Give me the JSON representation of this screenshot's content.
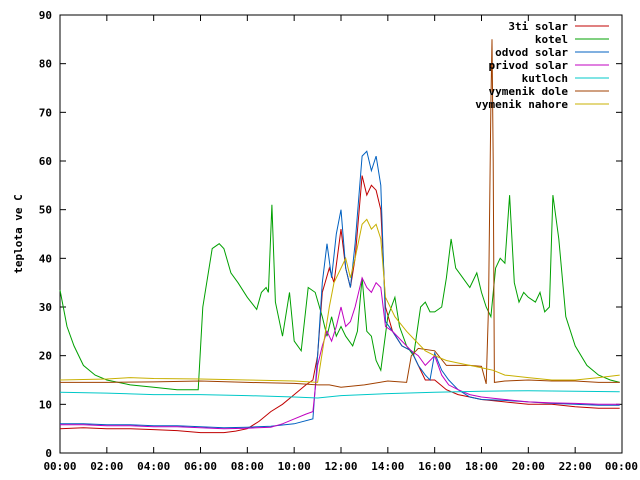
{
  "chart_data": {
    "type": "line",
    "title": "",
    "xlabel": "",
    "ylabel": "teplota ve C",
    "xlim": [
      0,
      24
    ],
    "ylim": [
      0,
      90
    ],
    "x_ticks": [
      "00:00",
      "02:00",
      "04:00",
      "06:00",
      "08:00",
      "10:00",
      "12:00",
      "14:00",
      "16:00",
      "18:00",
      "20:00",
      "22:00",
      "00:00"
    ],
    "y_ticks": [
      0,
      10,
      20,
      30,
      40,
      50,
      60,
      70,
      80,
      90
    ],
    "grid": false,
    "legend_position": "top-right",
    "series": [
      {
        "name": "3ti solar",
        "color": "#c00000",
        "points": [
          [
            0,
            5
          ],
          [
            1,
            5.2
          ],
          [
            2,
            5
          ],
          [
            3,
            5
          ],
          [
            4,
            4.8
          ],
          [
            5,
            4.6
          ],
          [
            6,
            4.2
          ],
          [
            7,
            4.2
          ],
          [
            7.5,
            4.5
          ],
          [
            8,
            5
          ],
          [
            8.5,
            6.5
          ],
          [
            9,
            8.5
          ],
          [
            9.5,
            10
          ],
          [
            10,
            12
          ],
          [
            10.5,
            14
          ],
          [
            10.8,
            15
          ],
          [
            11,
            20
          ],
          [
            11.2,
            33
          ],
          [
            11.5,
            38
          ],
          [
            11.7,
            35
          ],
          [
            12,
            46
          ],
          [
            12.2,
            38
          ],
          [
            12.4,
            34
          ],
          [
            12.6,
            40
          ],
          [
            12.9,
            57
          ],
          [
            13.1,
            53
          ],
          [
            13.3,
            55
          ],
          [
            13.5,
            54
          ],
          [
            13.7,
            50
          ],
          [
            13.9,
            30
          ],
          [
            14.2,
            25
          ],
          [
            14.6,
            22
          ],
          [
            15,
            21
          ],
          [
            15.3,
            18
          ],
          [
            15.6,
            15
          ],
          [
            16,
            15
          ],
          [
            16.5,
            13
          ],
          [
            17,
            12
          ],
          [
            17.5,
            11.5
          ],
          [
            18,
            11
          ],
          [
            19,
            10.5
          ],
          [
            20,
            10
          ],
          [
            21,
            10
          ],
          [
            22,
            9.5
          ],
          [
            23,
            9.2
          ],
          [
            23.9,
            9.2
          ]
        ]
      },
      {
        "name": "kotel",
        "color": "#00a000",
        "points": [
          [
            0,
            33.5
          ],
          [
            0.3,
            26
          ],
          [
            0.6,
            22
          ],
          [
            1,
            18
          ],
          [
            1.5,
            16
          ],
          [
            2,
            15
          ],
          [
            3,
            14
          ],
          [
            4,
            13.5
          ],
          [
            5,
            13
          ],
          [
            5.9,
            13
          ],
          [
            6.1,
            30
          ],
          [
            6.5,
            42
          ],
          [
            6.8,
            43
          ],
          [
            7,
            42
          ],
          [
            7.3,
            37
          ],
          [
            7.6,
            35
          ],
          [
            8,
            32
          ],
          [
            8.4,
            29.5
          ],
          [
            8.6,
            33
          ],
          [
            8.8,
            34
          ],
          [
            8.9,
            33
          ],
          [
            9.05,
            51
          ],
          [
            9.2,
            31
          ],
          [
            9.5,
            24
          ],
          [
            9.8,
            33
          ],
          [
            10,
            23
          ],
          [
            10.3,
            21
          ],
          [
            10.6,
            34
          ],
          [
            10.9,
            33
          ],
          [
            11.2,
            28
          ],
          [
            11.4,
            24
          ],
          [
            11.6,
            28
          ],
          [
            11.8,
            24
          ],
          [
            12,
            26
          ],
          [
            12.2,
            24
          ],
          [
            12.5,
            22
          ],
          [
            12.7,
            25
          ],
          [
            12.9,
            36
          ],
          [
            13.1,
            25
          ],
          [
            13.3,
            24
          ],
          [
            13.5,
            19
          ],
          [
            13.7,
            17
          ],
          [
            14,
            28
          ],
          [
            14.3,
            32
          ],
          [
            14.5,
            26
          ],
          [
            14.8,
            22
          ],
          [
            15.1,
            20
          ],
          [
            15.4,
            30
          ],
          [
            15.6,
            31
          ],
          [
            15.8,
            29
          ],
          [
            16,
            29
          ],
          [
            16.3,
            30
          ],
          [
            16.5,
            36
          ],
          [
            16.7,
            44
          ],
          [
            16.9,
            38
          ],
          [
            17.2,
            36
          ],
          [
            17.5,
            34
          ],
          [
            17.8,
            37
          ],
          [
            18,
            33
          ],
          [
            18.2,
            30
          ],
          [
            18.4,
            28
          ],
          [
            18.6,
            38
          ],
          [
            18.8,
            40
          ],
          [
            19,
            39
          ],
          [
            19.2,
            53
          ],
          [
            19.4,
            35
          ],
          [
            19.6,
            31
          ],
          [
            19.8,
            33
          ],
          [
            20,
            32
          ],
          [
            20.3,
            31
          ],
          [
            20.5,
            33
          ],
          [
            20.7,
            29
          ],
          [
            20.9,
            30
          ],
          [
            21.05,
            53
          ],
          [
            21.3,
            44
          ],
          [
            21.6,
            28
          ],
          [
            22,
            22
          ],
          [
            22.5,
            18
          ],
          [
            23,
            16
          ],
          [
            23.5,
            15
          ],
          [
            23.9,
            14.5
          ]
        ]
      },
      {
        "name": "odvod solar",
        "color": "#0060c0",
        "points": [
          [
            0,
            6
          ],
          [
            1,
            6
          ],
          [
            2,
            5.8
          ],
          [
            3,
            5.8
          ],
          [
            4,
            5.6
          ],
          [
            5,
            5.6
          ],
          [
            6,
            5.4
          ],
          [
            7,
            5.2
          ],
          [
            8,
            5.3
          ],
          [
            9,
            5.5
          ],
          [
            10,
            6
          ],
          [
            10.8,
            7
          ],
          [
            11,
            20
          ],
          [
            11.2,
            35
          ],
          [
            11.4,
            43
          ],
          [
            11.6,
            36
          ],
          [
            11.8,
            45
          ],
          [
            12,
            50
          ],
          [
            12.2,
            38
          ],
          [
            12.4,
            34
          ],
          [
            12.6,
            43
          ],
          [
            12.9,
            61
          ],
          [
            13.1,
            62
          ],
          [
            13.3,
            58
          ],
          [
            13.5,
            61
          ],
          [
            13.7,
            55
          ],
          [
            13.9,
            27
          ],
          [
            14.2,
            25
          ],
          [
            14.6,
            22
          ],
          [
            15,
            21
          ],
          [
            15.3,
            18
          ],
          [
            15.6,
            16
          ],
          [
            15.8,
            15
          ],
          [
            16,
            20.5
          ],
          [
            16.3,
            17
          ],
          [
            16.6,
            15
          ],
          [
            17,
            13
          ],
          [
            17.5,
            11.5
          ],
          [
            18,
            11
          ],
          [
            19,
            10.8
          ],
          [
            20,
            10.5
          ],
          [
            21,
            10.2
          ],
          [
            22,
            10
          ],
          [
            23,
            9.8
          ],
          [
            23.9,
            9.8
          ]
        ]
      },
      {
        "name": "privod solar",
        "color": "#c000c0",
        "points": [
          [
            0,
            5.8
          ],
          [
            1,
            5.8
          ],
          [
            2,
            5.6
          ],
          [
            3,
            5.6
          ],
          [
            4,
            5.4
          ],
          [
            5,
            5.4
          ],
          [
            6,
            5.2
          ],
          [
            7,
            5
          ],
          [
            8,
            5.1
          ],
          [
            9,
            5.3
          ],
          [
            9.5,
            6
          ],
          [
            10,
            7
          ],
          [
            10.5,
            8
          ],
          [
            10.8,
            8.5
          ],
          [
            11,
            18
          ],
          [
            11.2,
            22
          ],
          [
            11.4,
            25
          ],
          [
            11.6,
            23
          ],
          [
            11.8,
            26
          ],
          [
            12,
            30
          ],
          [
            12.2,
            26
          ],
          [
            12.4,
            27
          ],
          [
            12.6,
            30
          ],
          [
            12.9,
            36
          ],
          [
            13.1,
            34
          ],
          [
            13.3,
            33
          ],
          [
            13.5,
            35
          ],
          [
            13.7,
            34
          ],
          [
            13.9,
            26
          ],
          [
            14.2,
            25
          ],
          [
            14.6,
            23
          ],
          [
            15,
            21
          ],
          [
            15.3,
            20
          ],
          [
            15.6,
            18
          ],
          [
            16,
            20
          ],
          [
            16.3,
            16
          ],
          [
            16.6,
            14
          ],
          [
            17,
            13
          ],
          [
            17.5,
            12
          ],
          [
            18,
            11.5
          ],
          [
            19,
            11
          ],
          [
            20,
            10.5
          ],
          [
            21,
            10.3
          ],
          [
            22,
            10.2
          ],
          [
            23,
            10
          ],
          [
            23.9,
            10
          ]
        ]
      },
      {
        "name": "kutloch",
        "color": "#00c8c8",
        "points": [
          [
            0,
            12.5
          ],
          [
            2,
            12.3
          ],
          [
            4,
            12
          ],
          [
            6,
            12
          ],
          [
            8,
            11.8
          ],
          [
            10,
            11.5
          ],
          [
            11,
            11.3
          ],
          [
            12,
            11.8
          ],
          [
            14,
            12.2
          ],
          [
            16,
            12.5
          ],
          [
            18,
            12.7
          ],
          [
            20,
            12.8
          ],
          [
            22,
            12.7
          ],
          [
            23.9,
            12.6
          ]
        ]
      },
      {
        "name": "vymenik dole",
        "color": "#a04000",
        "points": [
          [
            0,
            14.5
          ],
          [
            2,
            14.5
          ],
          [
            4,
            14.6
          ],
          [
            6,
            14.8
          ],
          [
            8,
            14.5
          ],
          [
            10,
            14.3
          ],
          [
            11,
            14
          ],
          [
            11.5,
            14
          ],
          [
            12,
            13.5
          ],
          [
            13,
            14
          ],
          [
            14,
            14.8
          ],
          [
            14.8,
            14.5
          ],
          [
            15,
            20
          ],
          [
            15.3,
            21.5
          ],
          [
            16,
            21
          ],
          [
            16.5,
            18
          ],
          [
            17,
            18
          ],
          [
            17.5,
            18
          ],
          [
            18,
            17.8
          ],
          [
            18.2,
            14.2
          ],
          [
            18.3,
            30
          ],
          [
            18.4,
            72
          ],
          [
            18.45,
            85
          ],
          [
            18.5,
            60
          ],
          [
            18.55,
            14.5
          ],
          [
            19,
            14.8
          ],
          [
            20,
            15
          ],
          [
            21,
            14.8
          ],
          [
            22,
            14.8
          ],
          [
            23,
            14.5
          ],
          [
            23.9,
            14.5
          ]
        ]
      },
      {
        "name": "vymenik nahore",
        "color": "#c8b000",
        "points": [
          [
            0,
            15
          ],
          [
            2,
            15.2
          ],
          [
            3,
            15.5
          ],
          [
            4,
            15.3
          ],
          [
            6,
            15.2
          ],
          [
            8,
            15
          ],
          [
            10,
            14.8
          ],
          [
            11,
            14.5
          ],
          [
            11.5,
            30
          ],
          [
            11.7,
            35
          ],
          [
            12,
            38
          ],
          [
            12.2,
            40
          ],
          [
            12.4,
            36
          ],
          [
            12.6,
            40
          ],
          [
            12.9,
            47
          ],
          [
            13.1,
            48
          ],
          [
            13.3,
            46
          ],
          [
            13.5,
            47
          ],
          [
            13.7,
            44
          ],
          [
            13.9,
            32
          ],
          [
            14.3,
            28
          ],
          [
            14.8,
            25
          ],
          [
            15.2,
            23
          ],
          [
            15.6,
            21
          ],
          [
            16,
            20
          ],
          [
            16.5,
            19
          ],
          [
            17,
            18.5
          ],
          [
            17.5,
            18
          ],
          [
            18,
            17.5
          ],
          [
            18.5,
            17
          ],
          [
            19,
            16
          ],
          [
            20,
            15.5
          ],
          [
            21,
            15
          ],
          [
            22,
            15
          ],
          [
            23,
            15.5
          ],
          [
            23.9,
            16
          ]
        ]
      }
    ]
  }
}
